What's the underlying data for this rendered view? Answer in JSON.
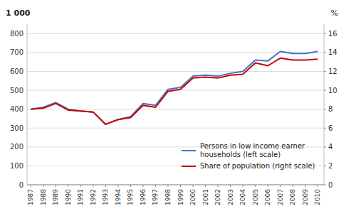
{
  "chart_data": {
    "type": "line",
    "x": [
      1987,
      1988,
      1989,
      1990,
      1991,
      1992,
      1993,
      1994,
      1995,
      1996,
      1997,
      1998,
      1999,
      2000,
      2001,
      2002,
      2003,
      2004,
      2005,
      2006,
      2007,
      2008,
      2009,
      2010
    ],
    "xlim": [
      1986.7,
      2010.5
    ],
    "xticks": [
      1987,
      1988,
      1989,
      1990,
      1991,
      1992,
      1993,
      1994,
      1995,
      1996,
      1997,
      1998,
      1999,
      2000,
      2001,
      2002,
      2003,
      2004,
      2005,
      2006,
      2007,
      2008,
      2009,
      2010
    ],
    "series": [
      {
        "name": "Persons in low income earner\nhouseholds (left scale)",
        "color": "#4472C4",
        "values": [
          400,
          410,
          435,
          400,
          390,
          385,
          320,
          345,
          360,
          430,
          420,
          505,
          515,
          575,
          580,
          575,
          590,
          600,
          660,
          655,
          705,
          695,
          695,
          705
        ]
      },
      {
        "name": "Share of population (right scale)",
        "color": "#CC0000",
        "axis": "y2",
        "values": [
          8.0,
          8.1,
          8.6,
          7.9,
          7.8,
          7.7,
          6.4,
          6.9,
          7.1,
          8.4,
          8.2,
          9.9,
          10.1,
          11.3,
          11.4,
          11.3,
          11.6,
          11.7,
          12.9,
          12.6,
          13.4,
          13.2,
          13.2,
          13.3
        ]
      }
    ],
    "ylabel": "1 000",
    "y2label": "%",
    "ylim": [
      0,
      850
    ],
    "yticks": [
      0,
      100,
      200,
      300,
      400,
      500,
      600,
      700,
      800
    ],
    "y2lim": [
      0,
      17
    ],
    "y2ticks": [
      0,
      2,
      4,
      6,
      8,
      10,
      12,
      14,
      16
    ],
    "grid": true,
    "legend": "lower right"
  }
}
